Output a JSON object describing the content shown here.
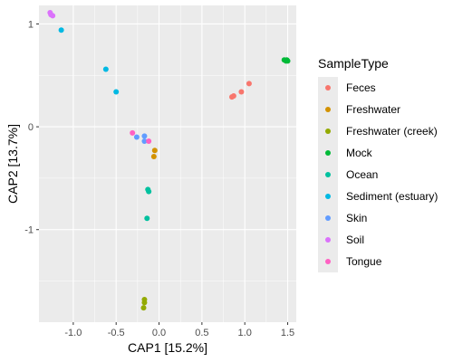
{
  "chart_data": {
    "type": "scatter",
    "xlabel": "CAP1   [15.2%]",
    "ylabel": "CAP2   [13.7%]",
    "xlim": [
      -1.4,
      1.6
    ],
    "ylim": [
      -1.9,
      1.18
    ],
    "x_ticks": [
      {
        "value": -1.0,
        "label": "-1.0"
      },
      {
        "value": -0.5,
        "label": "-0.5"
      },
      {
        "value": 0.0,
        "label": "0.0"
      },
      {
        "value": 0.5,
        "label": "0.5"
      },
      {
        "value": 1.0,
        "label": "1.0"
      },
      {
        "value": 1.5,
        "label": "1.5"
      }
    ],
    "y_ticks": [
      {
        "value": 1,
        "label": "1"
      },
      {
        "value": 0,
        "label": "0"
      },
      {
        "value": -1,
        "label": "-1"
      }
    ],
    "grid": true,
    "legend": {
      "title": "SampleType",
      "position": "right"
    },
    "series": [
      {
        "name": "Feces",
        "color": "#F8766D",
        "points": [
          [
            0.85,
            0.29
          ],
          [
            0.87,
            0.3
          ],
          [
            0.96,
            0.34
          ],
          [
            1.05,
            0.42
          ]
        ]
      },
      {
        "name": "Freshwater",
        "color": "#D39200",
        "points": [
          [
            -0.05,
            -0.23
          ],
          [
            -0.06,
            -0.29
          ]
        ]
      },
      {
        "name": "Freshwater (creek)",
        "color": "#93AA00",
        "points": [
          [
            -0.17,
            -1.68
          ],
          [
            -0.17,
            -1.71
          ],
          [
            -0.18,
            -1.76
          ]
        ]
      },
      {
        "name": "Mock",
        "color": "#00BA38",
        "points": [
          [
            1.46,
            0.65
          ],
          [
            1.48,
            0.64
          ],
          [
            1.49,
            0.65
          ],
          [
            1.5,
            0.64
          ]
        ]
      },
      {
        "name": "Ocean",
        "color": "#00C19F",
        "points": [
          [
            -0.13,
            -0.61
          ],
          [
            -0.12,
            -0.63
          ],
          [
            -0.14,
            -0.89
          ]
        ]
      },
      {
        "name": "Sediment (estuary)",
        "color": "#00B9E3",
        "points": [
          [
            -1.14,
            0.94
          ],
          [
            -0.62,
            0.56
          ],
          [
            -0.5,
            0.34
          ]
        ]
      },
      {
        "name": "Skin",
        "color": "#619CFF",
        "points": [
          [
            -0.26,
            -0.1
          ],
          [
            -0.17,
            -0.09
          ],
          [
            -0.17,
            -0.14
          ]
        ]
      },
      {
        "name": "Soil",
        "color": "#DB72FB",
        "points": [
          [
            -1.27,
            1.11
          ],
          [
            -1.24,
            1.08
          ],
          [
            -1.26,
            1.09
          ]
        ]
      },
      {
        "name": "Tongue",
        "color": "#FF61C3",
        "points": [
          [
            -0.31,
            -0.06
          ],
          [
            -0.12,
            -0.14
          ]
        ]
      }
    ]
  }
}
